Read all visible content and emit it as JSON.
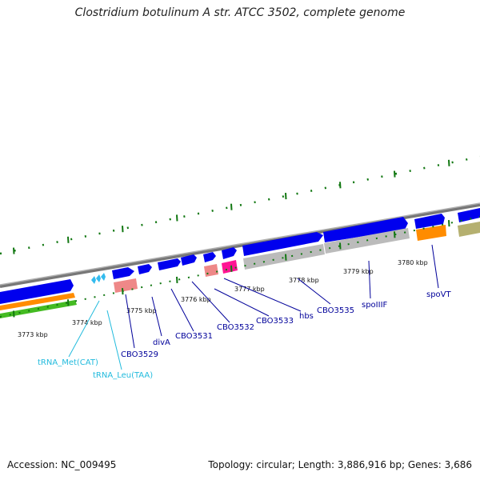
{
  "title": "Clostridium botulinum A str. ATCC 3502, complete genome",
  "footer": {
    "accession": "Accession: NC_009495",
    "summary": "Topology: circular; Length: 3,886,916 bp; Genes: 3,686"
  },
  "colors": {
    "backbone": "#8c8c8c",
    "cds": "#0000ee",
    "gene_label": "#00009a",
    "trna": "#33bbee",
    "trna_label": "#22bbdd",
    "tick": "#117711",
    "orange": "#ff8c00",
    "green": "#44bb22",
    "pink": "#ee8888",
    "magenta": "#ff1493",
    "grey_feature": "#bbbbbb",
    "olive": "#b5b070"
  },
  "kbp_labels": [
    "3773 kbp",
    "3774 kbp",
    "3775 kbp",
    "3776 kbp",
    "3777 kbp",
    "3778 kbp",
    "3779 kbp",
    "3780 kbp"
  ],
  "gene_labels": [
    "CBO3529",
    "divA",
    "CBO3531",
    "CBO3532",
    "CBO3533",
    "hbs",
    "CBO3535",
    "spoIIIF",
    "spoVT"
  ],
  "trna_labels": [
    "tRNA_Met(CAT)",
    "tRNA_Leu(TAA)"
  ]
}
